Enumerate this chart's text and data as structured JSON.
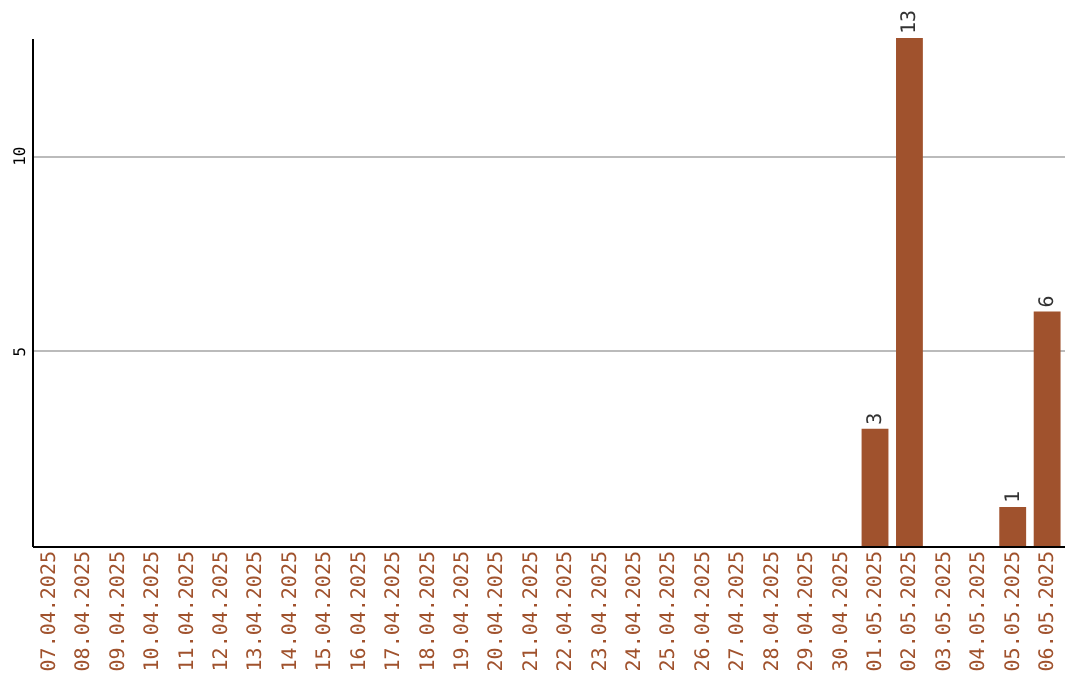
{
  "chart_data": {
    "type": "bar",
    "categories": [
      "07.04.2025",
      "08.04.2025",
      "09.04.2025",
      "10.04.2025",
      "11.04.2025",
      "12.04.2025",
      "13.04.2025",
      "14.04.2025",
      "15.04.2025",
      "16.04.2025",
      "17.04.2025",
      "18.04.2025",
      "19.04.2025",
      "20.04.2025",
      "21.04.2025",
      "22.04.2025",
      "23.04.2025",
      "24.04.2025",
      "25.04.2025",
      "26.04.2025",
      "27.04.2025",
      "28.04.2025",
      "29.04.2025",
      "30.04.2025",
      "01.05.2025",
      "02.05.2025",
      "03.05.2025",
      "04.05.2025",
      "05.05.2025",
      "06.05.2025"
    ],
    "values": [
      0,
      0,
      0,
      0,
      0,
      0,
      0,
      0,
      0,
      0,
      0,
      0,
      0,
      0,
      0,
      0,
      0,
      0,
      0,
      0,
      0,
      0,
      0,
      0,
      3,
      13,
      0,
      0,
      1,
      6
    ],
    "value_labels": [
      null,
      null,
      null,
      null,
      null,
      null,
      null,
      null,
      null,
      null,
      null,
      null,
      null,
      null,
      null,
      null,
      null,
      null,
      null,
      null,
      null,
      null,
      null,
      null,
      "3",
      "13",
      null,
      null,
      "1",
      "6"
    ],
    "color": "#a0522d",
    "ylim": [
      0,
      13
    ],
    "yticks": [
      5,
      10
    ],
    "grid": "y"
  }
}
